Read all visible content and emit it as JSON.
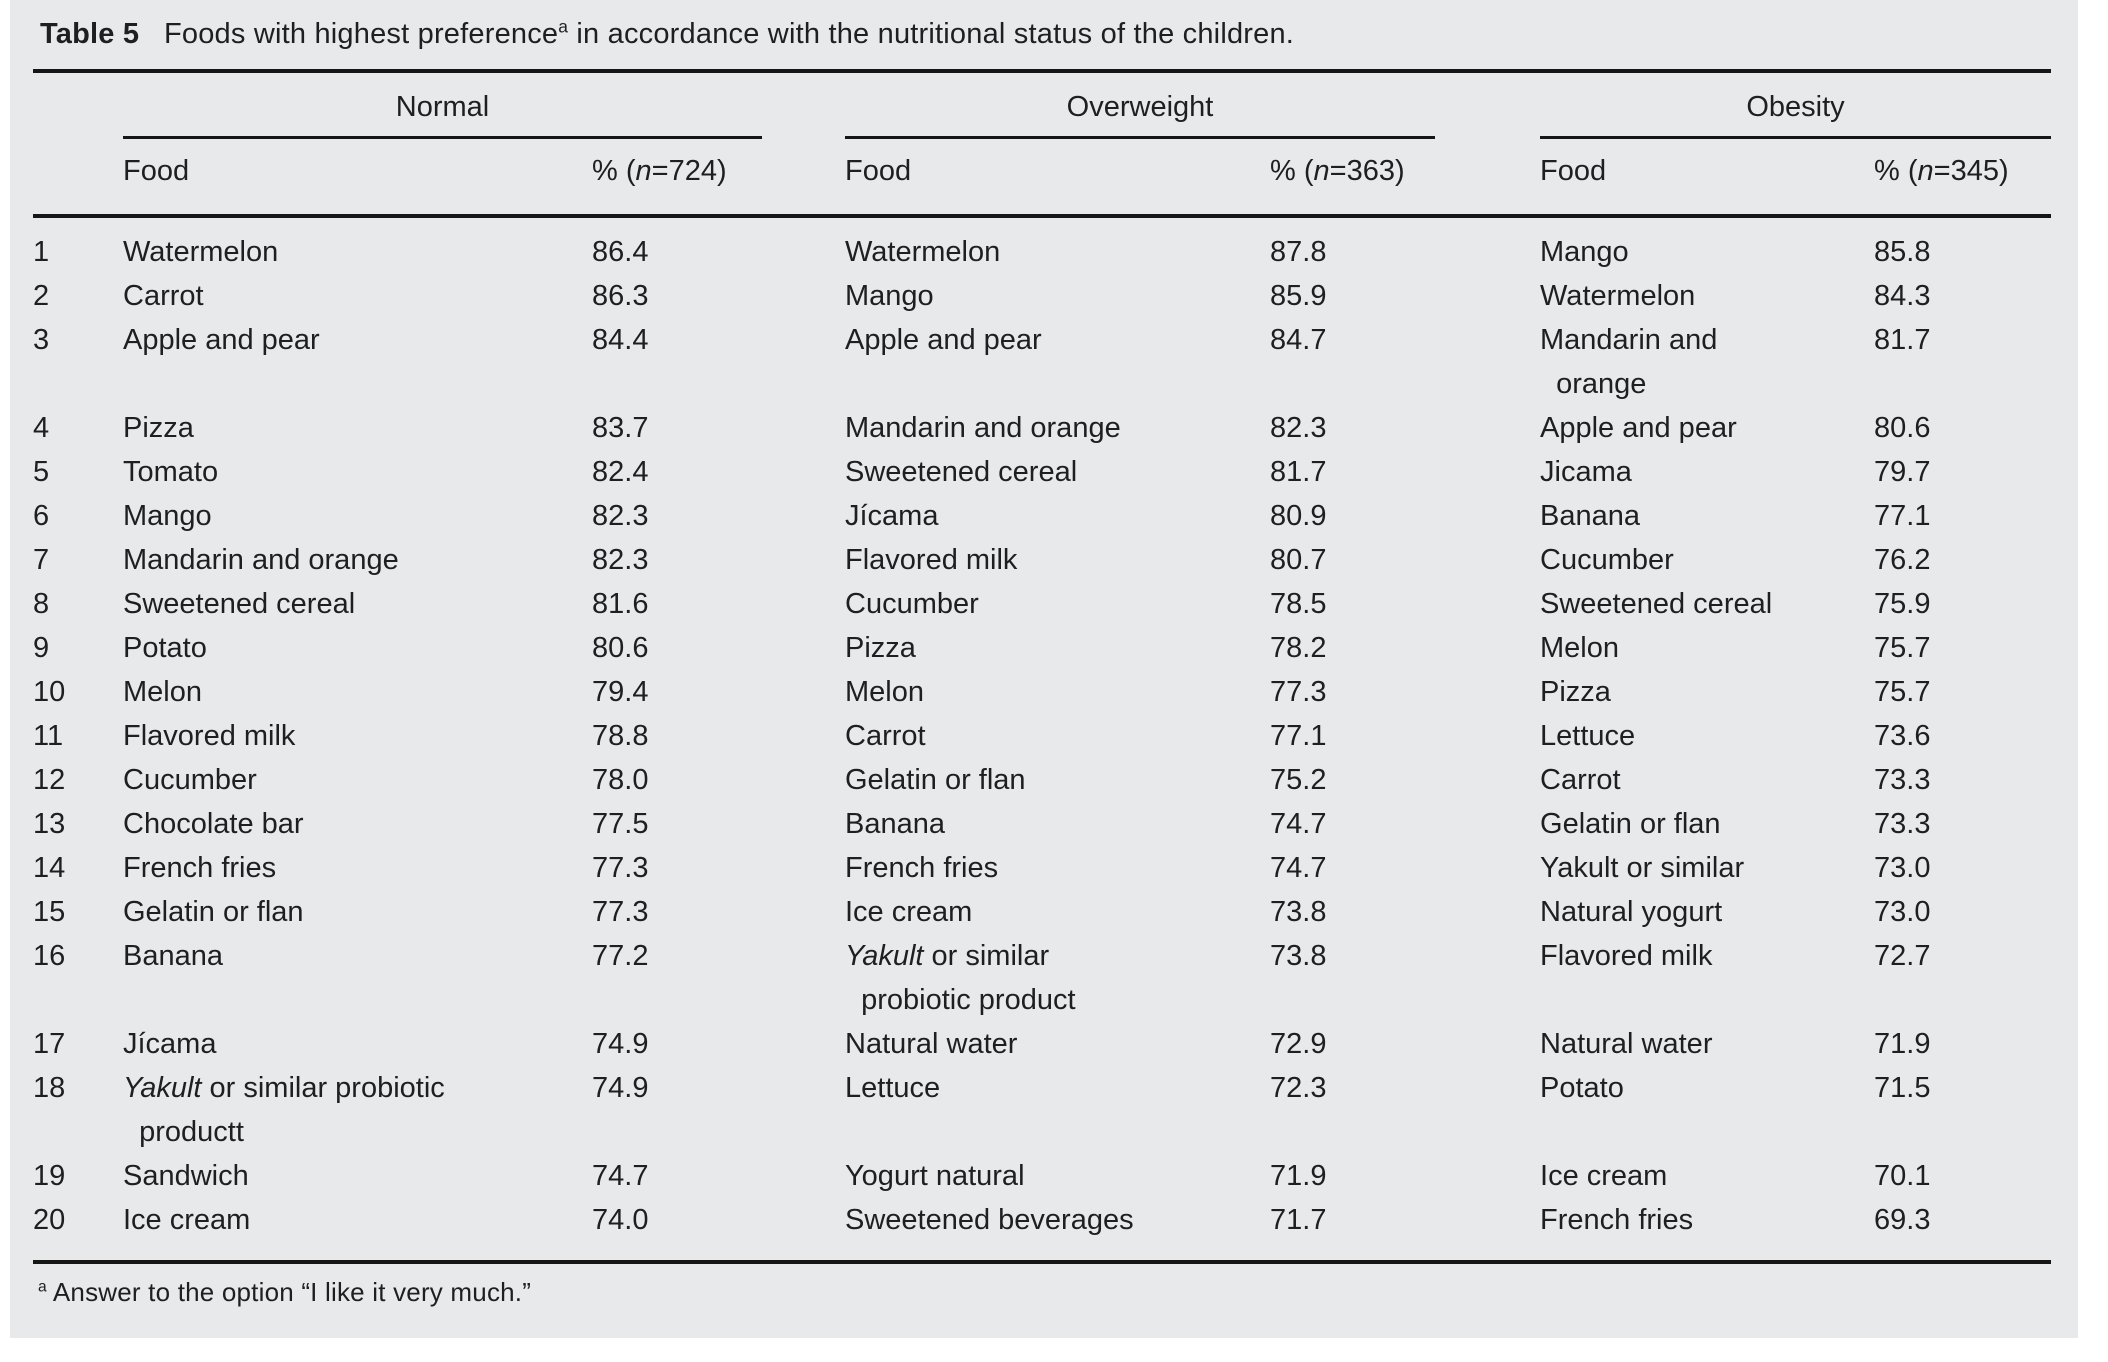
{
  "table": {
    "caption_runs": [
      {
        "t": "Table 5",
        "b": true
      },
      {
        "t": "   Foods with highest preference"
      },
      {
        "t": "a",
        "sup": true
      },
      {
        "t": " in accordance with the nutritional status of the children."
      }
    ],
    "groups": [
      {
        "name": "Normal",
        "food_header": "Food",
        "pct_header_runs": [
          {
            "t": "% ("
          },
          {
            "t": "n",
            "i": true
          },
          {
            "t": "=724)"
          }
        ],
        "n": 724
      },
      {
        "name": "Overweight",
        "food_header": "Food",
        "pct_header_runs": [
          {
            "t": "% ("
          },
          {
            "t": "n",
            "i": true
          },
          {
            "t": "=363)"
          }
        ],
        "n": 363
      },
      {
        "name": "Obesity",
        "food_header": "Food",
        "pct_header_runs": [
          {
            "t": "% ("
          },
          {
            "t": "n",
            "i": true
          },
          {
            "t": "=345)"
          }
        ],
        "n": 345
      }
    ],
    "rows": [
      {
        "rank": "1",
        "cols": [
          {
            "food": [
              {
                "t": "Watermelon"
              }
            ],
            "pct": "86.4"
          },
          {
            "food": [
              {
                "t": "Watermelon"
              }
            ],
            "pct": "87.8"
          },
          {
            "food": [
              {
                "t": "Mango"
              }
            ],
            "pct": "85.8"
          }
        ]
      },
      {
        "rank": "2",
        "cols": [
          {
            "food": [
              {
                "t": "Carrot"
              }
            ],
            "pct": "86.3"
          },
          {
            "food": [
              {
                "t": "Mango"
              }
            ],
            "pct": "85.9"
          },
          {
            "food": [
              {
                "t": "Watermelon"
              }
            ],
            "pct": "84.3"
          }
        ]
      },
      {
        "rank": "3",
        "cols": [
          {
            "food": [
              {
                "t": "Apple and pear"
              }
            ],
            "pct": "84.4"
          },
          {
            "food": [
              {
                "t": "Apple and pear"
              }
            ],
            "pct": "84.7"
          },
          {
            "food": [
              {
                "t": "Mandarin and"
              },
              {
                "br": true
              },
              {
                "t": "  orange"
              }
            ],
            "pct": "81.7"
          }
        ]
      },
      {
        "rank": "4",
        "cols": [
          {
            "food": [
              {
                "t": "Pizza"
              }
            ],
            "pct": "83.7"
          },
          {
            "food": [
              {
                "t": "Mandarin and orange"
              }
            ],
            "pct": "82.3"
          },
          {
            "food": [
              {
                "t": "Apple and pear"
              }
            ],
            "pct": "80.6"
          }
        ]
      },
      {
        "rank": "5",
        "cols": [
          {
            "food": [
              {
                "t": "Tomato"
              }
            ],
            "pct": "82.4"
          },
          {
            "food": [
              {
                "t": "Sweetened cereal"
              }
            ],
            "pct": "81.7"
          },
          {
            "food": [
              {
                "t": "Jicama"
              }
            ],
            "pct": "79.7"
          }
        ]
      },
      {
        "rank": "6",
        "cols": [
          {
            "food": [
              {
                "t": "Mango"
              }
            ],
            "pct": "82.3"
          },
          {
            "food": [
              {
                "t": "Jícama"
              }
            ],
            "pct": "80.9"
          },
          {
            "food": [
              {
                "t": "Banana"
              }
            ],
            "pct": "77.1"
          }
        ]
      },
      {
        "rank": "7",
        "cols": [
          {
            "food": [
              {
                "t": "Mandarin and orange"
              }
            ],
            "pct": "82.3"
          },
          {
            "food": [
              {
                "t": "Flavored milk"
              }
            ],
            "pct": "80.7"
          },
          {
            "food": [
              {
                "t": "Cucumber"
              }
            ],
            "pct": "76.2"
          }
        ]
      },
      {
        "rank": "8",
        "cols": [
          {
            "food": [
              {
                "t": "Sweetened cereal"
              }
            ],
            "pct": "81.6"
          },
          {
            "food": [
              {
                "t": "Cucumber"
              }
            ],
            "pct": "78.5"
          },
          {
            "food": [
              {
                "t": "Sweetened cereal"
              }
            ],
            "pct": "75.9"
          }
        ]
      },
      {
        "rank": "9",
        "cols": [
          {
            "food": [
              {
                "t": "Potato"
              }
            ],
            "pct": "80.6"
          },
          {
            "food": [
              {
                "t": "Pizza"
              }
            ],
            "pct": "78.2"
          },
          {
            "food": [
              {
                "t": "Melon"
              }
            ],
            "pct": "75.7"
          }
        ]
      },
      {
        "rank": "10",
        "cols": [
          {
            "food": [
              {
                "t": "Melon"
              }
            ],
            "pct": "79.4"
          },
          {
            "food": [
              {
                "t": "Melon"
              }
            ],
            "pct": "77.3"
          },
          {
            "food": [
              {
                "t": "Pizza"
              }
            ],
            "pct": "75.7"
          }
        ]
      },
      {
        "rank": "11",
        "cols": [
          {
            "food": [
              {
                "t": "Flavored milk"
              }
            ],
            "pct": "78.8"
          },
          {
            "food": [
              {
                "t": "Carrot"
              }
            ],
            "pct": "77.1"
          },
          {
            "food": [
              {
                "t": "Lettuce"
              }
            ],
            "pct": "73.6"
          }
        ]
      },
      {
        "rank": "12",
        "cols": [
          {
            "food": [
              {
                "t": "Cucumber"
              }
            ],
            "pct": "78.0"
          },
          {
            "food": [
              {
                "t": "Gelatin or flan"
              }
            ],
            "pct": "75.2"
          },
          {
            "food": [
              {
                "t": "Carrot"
              }
            ],
            "pct": "73.3"
          }
        ]
      },
      {
        "rank": "13",
        "cols": [
          {
            "food": [
              {
                "t": "Chocolate bar"
              }
            ],
            "pct": "77.5"
          },
          {
            "food": [
              {
                "t": "Banana"
              }
            ],
            "pct": "74.7"
          },
          {
            "food": [
              {
                "t": "Gelatin or flan"
              }
            ],
            "pct": "73.3"
          }
        ]
      },
      {
        "rank": "14",
        "cols": [
          {
            "food": [
              {
                "t": "French fries"
              }
            ],
            "pct": "77.3"
          },
          {
            "food": [
              {
                "t": "French fries"
              }
            ],
            "pct": "74.7"
          },
          {
            "food": [
              {
                "t": "Yakult or similar"
              }
            ],
            "pct": "73.0"
          }
        ]
      },
      {
        "rank": "15",
        "cols": [
          {
            "food": [
              {
                "t": "Gelatin or flan"
              }
            ],
            "pct": "77.3"
          },
          {
            "food": [
              {
                "t": "Ice cream"
              }
            ],
            "pct": "73.8"
          },
          {
            "food": [
              {
                "t": "Natural yogurt"
              }
            ],
            "pct": "73.0"
          }
        ]
      },
      {
        "rank": "16",
        "cols": [
          {
            "food": [
              {
                "t": "Banana"
              }
            ],
            "pct": "77.2"
          },
          {
            "food": [
              {
                "t": "Yakult",
                "i": true
              },
              {
                "t": " or similar"
              },
              {
                "br": true
              },
              {
                "t": "  probiotic product"
              }
            ],
            "pct": "73.8"
          },
          {
            "food": [
              {
                "t": "Flavored milk"
              }
            ],
            "pct": "72.7"
          }
        ]
      },
      {
        "rank": "17",
        "cols": [
          {
            "food": [
              {
                "t": "Jícama"
              }
            ],
            "pct": "74.9"
          },
          {
            "food": [
              {
                "t": "Natural water"
              }
            ],
            "pct": "72.9"
          },
          {
            "food": [
              {
                "t": "Natural water"
              }
            ],
            "pct": "71.9"
          }
        ]
      },
      {
        "rank": "18",
        "cols": [
          {
            "food": [
              {
                "t": "Yakult",
                "i": true
              },
              {
                "t": " or similar probiotic"
              },
              {
                "br": true
              },
              {
                "t": "  productt"
              }
            ],
            "pct": "74.9"
          },
          {
            "food": [
              {
                "t": "Lettuce"
              }
            ],
            "pct": "72.3"
          },
          {
            "food": [
              {
                "t": "Potato"
              }
            ],
            "pct": "71.5"
          }
        ]
      },
      {
        "rank": "19",
        "cols": [
          {
            "food": [
              {
                "t": "Sandwich"
              }
            ],
            "pct": "74.7"
          },
          {
            "food": [
              {
                "t": "Yogurt natural"
              }
            ],
            "pct": "71.9"
          },
          {
            "food": [
              {
                "t": "Ice cream"
              }
            ],
            "pct": "70.1"
          }
        ]
      },
      {
        "rank": "20",
        "cols": [
          {
            "food": [
              {
                "t": "Ice cream"
              }
            ],
            "pct": "74.0"
          },
          {
            "food": [
              {
                "t": "Sweetened beverages"
              }
            ],
            "pct": "71.7"
          },
          {
            "food": [
              {
                "t": "French fries"
              }
            ],
            "pct": "69.3"
          }
        ]
      }
    ],
    "footnote_runs": [
      {
        "t": "a",
        "sup": true
      },
      {
        "t": " Answer to the option “I like it very much.”"
      }
    ],
    "colors": {
      "panel_bg": "#e8e9ea",
      "text": "#1e1f21",
      "rule": "#161617"
    }
  }
}
